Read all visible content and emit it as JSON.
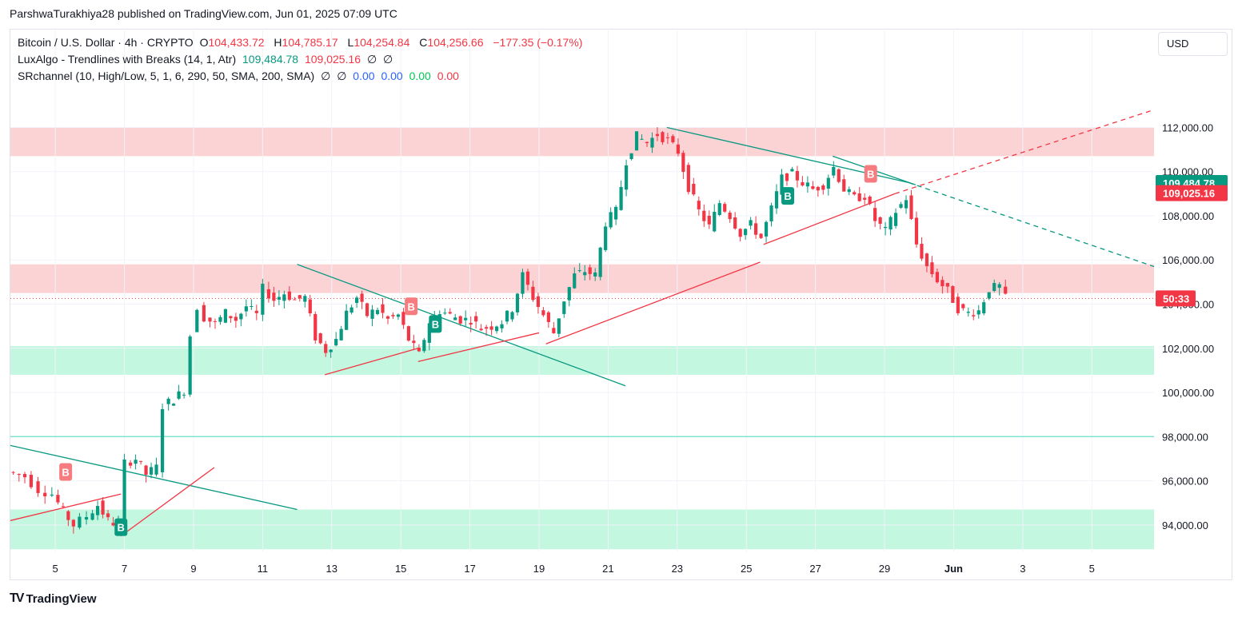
{
  "publisher": "ParshwaTurakhiya28 published on TradingView.com, Jun 01, 2025 07:09 UTC",
  "legend": {
    "symbol": "Bitcoin / U.S. Dollar · 4h · CRYPTO",
    "o_label": "O",
    "o": "104,433.72",
    "h_label": "H",
    "h": "104,785.17",
    "l_label": "L",
    "l": "104,254.84",
    "c_label": "C",
    "c": "104,256.66",
    "change": "−177.35 (−0.17%)",
    "ind1_name": "LuxAlgo - Trendlines with Breaks (14, 1, Atr)",
    "ind1_v1": "109,484.78",
    "ind1_v2": "109,025.16",
    "ind1_v3": "∅",
    "ind1_v4": "∅",
    "ind2_name": "SRchannel (10, High/Low, 5, 1, 6, 290, 50, SMA, 200, SMA)",
    "ind2_v1": "∅",
    "ind2_v2": "∅",
    "ind2_v3": "0.00",
    "ind2_v4": "0.00",
    "ind2_v5": "0.00",
    "ind2_v6": "0.00"
  },
  "currency_button": "USD",
  "brand": "TradingView",
  "colors": {
    "up": "#089981",
    "down": "#f23645",
    "resistance_zone": "#fccbcd",
    "support_zone": "#b9f6d9",
    "downtrend_line": "#089981",
    "uptrend_line": "#f23645"
  },
  "chart_data": {
    "type": "candlestick",
    "title": "Bitcoin / U.S. Dollar · 4h · CRYPTO",
    "x_ticks": [
      "5",
      "7",
      "9",
      "11",
      "13",
      "15",
      "17",
      "19",
      "21",
      "23",
      "25",
      "27",
      "29",
      "Jun",
      "3",
      "5"
    ],
    "y_ticks": [
      112000,
      110000,
      108000,
      106000,
      104000,
      102000,
      100000,
      98000,
      96000,
      94000
    ],
    "y_tick_labels": [
      "112,000.00",
      "110,000.00",
      "108,000.00",
      "106,000.00",
      "104,000.00",
      "102,000.00",
      "100,000.00",
      "98,000.00",
      "96,000.00",
      "94,000.00"
    ],
    "ylim": [
      92800,
      113500
    ],
    "x_range_days": [
      3.7,
      36.8
    ],
    "last_price": 104256.66,
    "countdown_label": "50:33",
    "price_labels": [
      {
        "value": 109484.78,
        "text": "109,484.78",
        "color": "#089981"
      },
      {
        "value": 109025.16,
        "text": "109,025.16",
        "color": "#f23645"
      }
    ],
    "zones": [
      {
        "kind": "resistance",
        "from": 110700,
        "to": 112000
      },
      {
        "kind": "resistance",
        "from": 104500,
        "to": 105800
      },
      {
        "kind": "support",
        "from": 100800,
        "to": 102100
      },
      {
        "kind": "support",
        "from": 92900,
        "to": 94700
      }
    ],
    "hline": {
      "value": 98000
    },
    "trendlines": [
      {
        "kind": "down",
        "x": [
          3.7,
          12.0
        ],
        "y": [
          97600,
          94700
        ]
      },
      {
        "kind": "up",
        "x": [
          3.7,
          6.9
        ],
        "y": [
          94200,
          95400
        ]
      },
      {
        "kind": "up",
        "x": [
          6.9,
          9.6
        ],
        "y": [
          93500,
          96600
        ]
      },
      {
        "kind": "down",
        "x": [
          12.0,
          21.5
        ],
        "y": [
          105800,
          100300
        ]
      },
      {
        "kind": "up",
        "x": [
          12.8,
          15.5
        ],
        "y": [
          100800,
          102000
        ]
      },
      {
        "kind": "up",
        "x": [
          15.5,
          19.0
        ],
        "y": [
          101400,
          102700
        ]
      },
      {
        "kind": "up",
        "x": [
          19.2,
          25.4
        ],
        "y": [
          102200,
          105900
        ]
      },
      {
        "kind": "down",
        "x": [
          22.7,
          29.7
        ],
        "y": [
          112000,
          109500
        ]
      },
      {
        "kind": "down_ext",
        "x": [
          29.7,
          36.8
        ],
        "y": [
          109500,
          105700
        ]
      },
      {
        "kind": "up",
        "x": [
          25.5,
          29.3
        ],
        "y": [
          106700,
          109000
        ]
      },
      {
        "kind": "up_ext",
        "x": [
          29.3,
          36.8
        ],
        "y": [
          109000,
          112800
        ]
      },
      {
        "kind": "down",
        "x": [
          27.5,
          29.9
        ],
        "y": [
          110700,
          109400
        ]
      }
    ],
    "signals": [
      {
        "label": "B",
        "x": 5.3,
        "y": 96400,
        "kind": "break_down"
      },
      {
        "label": "B",
        "x": 6.9,
        "y": 93900,
        "kind": "break_up"
      },
      {
        "label": "B",
        "x": 15.3,
        "y": 103900,
        "kind": "break_down"
      },
      {
        "label": "B",
        "x": 16.0,
        "y": 103100,
        "kind": "break_up"
      },
      {
        "label": "B",
        "x": 26.2,
        "y": 108900,
        "kind": "break_up"
      },
      {
        "label": "B",
        "x": 28.6,
        "y": 109900,
        "kind": "break_down"
      }
    ],
    "series": [
      {
        "name": "BTCUSD 4h",
        "close_path": [
          [
            3.7,
            96400
          ],
          [
            4.2,
            96200
          ],
          [
            4.6,
            95600
          ],
          [
            5.0,
            95400
          ],
          [
            5.3,
            94600
          ],
          [
            5.6,
            94000
          ],
          [
            6.0,
            94400
          ],
          [
            6.3,
            94900
          ],
          [
            6.6,
            94200
          ],
          [
            6.9,
            94000
          ],
          [
            7.1,
            96800
          ],
          [
            7.4,
            97000
          ],
          [
            7.7,
            96300
          ],
          [
            8.0,
            96600
          ],
          [
            8.2,
            99400
          ],
          [
            8.5,
            99700
          ],
          [
            8.8,
            100100
          ],
          [
            9.0,
            102600
          ],
          [
            9.2,
            103900
          ],
          [
            9.4,
            103400
          ],
          [
            9.7,
            103100
          ],
          [
            10.0,
            103600
          ],
          [
            10.3,
            103300
          ],
          [
            10.6,
            103900
          ],
          [
            10.9,
            103500
          ],
          [
            11.1,
            104700
          ],
          [
            11.4,
            104200
          ],
          [
            11.7,
            104500
          ],
          [
            12.0,
            104200
          ],
          [
            12.3,
            104300
          ],
          [
            12.6,
            102500
          ],
          [
            12.9,
            101900
          ],
          [
            13.2,
            102400
          ],
          [
            13.5,
            103600
          ],
          [
            13.8,
            104300
          ],
          [
            14.1,
            103500
          ],
          [
            14.4,
            103800
          ],
          [
            14.7,
            103300
          ],
          [
            15.0,
            103500
          ],
          [
            15.3,
            102400
          ],
          [
            15.6,
            101700
          ],
          [
            15.9,
            103200
          ],
          [
            16.2,
            103700
          ],
          [
            16.5,
            103500
          ],
          [
            16.8,
            103300
          ],
          [
            17.1,
            103300
          ],
          [
            17.4,
            102900
          ],
          [
            17.7,
            103000
          ],
          [
            18.0,
            103200
          ],
          [
            18.3,
            103800
          ],
          [
            18.6,
            105300
          ],
          [
            18.9,
            104300
          ],
          [
            19.2,
            103500
          ],
          [
            19.5,
            102700
          ],
          [
            19.8,
            104200
          ],
          [
            20.1,
            105300
          ],
          [
            20.4,
            105500
          ],
          [
            20.7,
            105300
          ],
          [
            21.0,
            107700
          ],
          [
            21.3,
            108200
          ],
          [
            21.6,
            110500
          ],
          [
            21.9,
            111600
          ],
          [
            22.2,
            111300
          ],
          [
            22.5,
            111700
          ],
          [
            22.8,
            111400
          ],
          [
            23.1,
            110900
          ],
          [
            23.4,
            109300
          ],
          [
            23.7,
            108200
          ],
          [
            24.0,
            107500
          ],
          [
            24.3,
            108600
          ],
          [
            24.6,
            108000
          ],
          [
            24.9,
            107200
          ],
          [
            25.2,
            107600
          ],
          [
            25.5,
            107000
          ],
          [
            25.8,
            108300
          ],
          [
            26.1,
            109700
          ],
          [
            26.4,
            109900
          ],
          [
            26.7,
            109500
          ],
          [
            27.0,
            109200
          ],
          [
            27.3,
            109400
          ],
          [
            27.6,
            110200
          ],
          [
            27.9,
            109200
          ],
          [
            28.2,
            108800
          ],
          [
            28.5,
            108900
          ],
          [
            28.8,
            107800
          ],
          [
            29.1,
            107300
          ],
          [
            29.4,
            108200
          ],
          [
            29.7,
            108800
          ],
          [
            30.0,
            106700
          ],
          [
            30.3,
            105700
          ],
          [
            30.6,
            105100
          ],
          [
            30.9,
            104600
          ],
          [
            31.2,
            103800
          ],
          [
            31.5,
            103600
          ],
          [
            31.8,
            103700
          ],
          [
            32.1,
            104700
          ],
          [
            32.4,
            104800
          ],
          [
            32.6,
            104256
          ]
        ]
      }
    ]
  }
}
